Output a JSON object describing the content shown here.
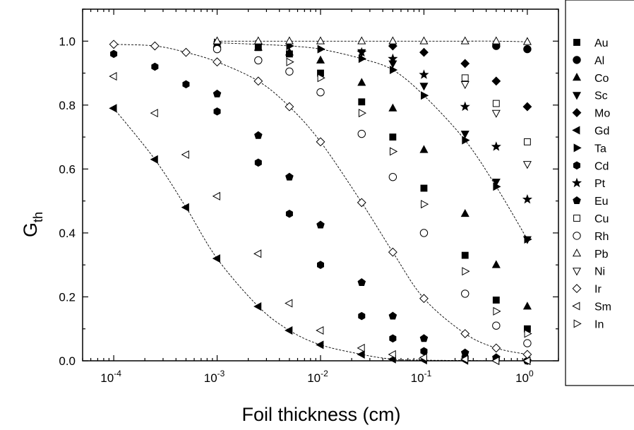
{
  "chart_data": {
    "type": "scatter",
    "title": "",
    "xlabel": "Foil thickness (cm)",
    "ylabel": "G",
    "ylabel_sub": "th",
    "x_scale": "log",
    "xlim": [
      5e-05,
      2
    ],
    "ylim": [
      0.0,
      1.1
    ],
    "x_ticks": [
      {
        "value": 0.0001,
        "base": "10",
        "exp": "-4"
      },
      {
        "value": 0.001,
        "base": "10",
        "exp": "-3"
      },
      {
        "value": 0.01,
        "base": "10",
        "exp": "-2"
      },
      {
        "value": 0.1,
        "base": "10",
        "exp": "-1"
      },
      {
        "value": 1,
        "base": "10",
        "exp": "0"
      }
    ],
    "y_ticks": [
      {
        "value": 0.0,
        "label": "0.0"
      },
      {
        "value": 0.2,
        "label": "0.2"
      },
      {
        "value": 0.4,
        "label": "0.4"
      },
      {
        "value": 0.6,
        "label": "0.6"
      },
      {
        "value": 0.8,
        "label": "0.8"
      },
      {
        "value": 1.0,
        "label": "1.0"
      }
    ],
    "grid": false,
    "legend_position": "right-outside",
    "series": [
      {
        "name": "Au",
        "marker": "square",
        "filled": true,
        "x": [
          0.001,
          0.0025,
          0.005,
          0.01,
          0.025,
          0.05,
          0.1,
          0.25,
          0.5,
          1
        ],
        "y": [
          0.99,
          0.98,
          0.96,
          0.9,
          0.81,
          0.7,
          0.54,
          0.33,
          0.19,
          0.1
        ]
      },
      {
        "name": "Al",
        "marker": "circle",
        "filled": true,
        "x": [
          0.5,
          1
        ],
        "y": [
          0.985,
          0.975
        ]
      },
      {
        "name": "Co",
        "marker": "triangle-up",
        "filled": true,
        "x": [
          0.001,
          0.0025,
          0.005,
          0.01,
          0.025,
          0.05,
          0.1,
          0.25,
          0.5,
          1
        ],
        "y": [
          0.99,
          0.98,
          0.965,
          0.94,
          0.87,
          0.79,
          0.66,
          0.46,
          0.3,
          0.17
        ]
      },
      {
        "name": "Sc",
        "marker": "triangle-down",
        "filled": true,
        "x": [
          0.025,
          0.05,
          0.1,
          0.25,
          0.5,
          1
        ],
        "y": [
          0.965,
          0.93,
          0.86,
          0.71,
          0.56,
          0.38
        ]
      },
      {
        "name": "Mo",
        "marker": "diamond",
        "filled": true,
        "x": [
          0.05,
          0.1,
          0.25,
          0.5,
          1
        ],
        "y": [
          0.985,
          0.965,
          0.93,
          0.875,
          0.795
        ]
      },
      {
        "name": "Gd",
        "marker": "triangle-left",
        "filled": true,
        "fit": true,
        "x": [
          0.0001,
          0.00025,
          0.0005,
          0.001,
          0.0025,
          0.005,
          0.01,
          0.025,
          0.05,
          0.1,
          0.25,
          0.5,
          1
        ],
        "y": [
          0.79,
          0.63,
          0.48,
          0.32,
          0.17,
          0.095,
          0.05,
          0.02,
          0.005,
          0.002,
          0.001,
          0.0,
          0.0
        ]
      },
      {
        "name": "Ta",
        "marker": "triangle-right",
        "filled": true,
        "fit": true,
        "x": [
          0.001,
          0.0025,
          0.005,
          0.01,
          0.025,
          0.05,
          0.1,
          0.25,
          0.5,
          1
        ],
        "y": [
          0.995,
          0.99,
          0.985,
          0.975,
          0.945,
          0.91,
          0.83,
          0.69,
          0.545,
          0.38
        ]
      },
      {
        "name": "Cd",
        "marker": "hexagon",
        "filled": true,
        "x": [
          0.0001,
          0.00025,
          0.0005,
          0.001,
          0.0025,
          0.005,
          0.01,
          0.025,
          0.05,
          0.1,
          0.25,
          0.5,
          1
        ],
        "y": [
          0.96,
          0.92,
          0.865,
          0.78,
          0.62,
          0.46,
          0.3,
          0.14,
          0.07,
          0.03,
          0.01,
          0.005,
          0.0
        ]
      },
      {
        "name": "Pt",
        "marker": "star",
        "filled": true,
        "x": [
          0.025,
          0.05,
          0.1,
          0.25,
          0.5,
          1
        ],
        "y": [
          0.965,
          0.945,
          0.895,
          0.795,
          0.67,
          0.505
        ]
      },
      {
        "name": "Eu",
        "marker": "pentagon",
        "filled": true,
        "x": [
          0.001,
          0.0025,
          0.005,
          0.01,
          0.025,
          0.05,
          0.1,
          0.25,
          0.5,
          1
        ],
        "y": [
          0.835,
          0.705,
          0.575,
          0.425,
          0.245,
          0.14,
          0.07,
          0.025,
          0.01,
          0.0
        ]
      },
      {
        "name": "Cu",
        "marker": "square",
        "filled": false,
        "x": [
          0.25,
          0.5,
          1
        ],
        "y": [
          0.885,
          0.805,
          0.685
        ]
      },
      {
        "name": "Rh",
        "marker": "circle",
        "filled": false,
        "x": [
          0.001,
          0.0025,
          0.005,
          0.01,
          0.025,
          0.05,
          0.1,
          0.25,
          0.5,
          1
        ],
        "y": [
          0.975,
          0.94,
          0.905,
          0.84,
          0.71,
          0.575,
          0.4,
          0.21,
          0.11,
          0.055
        ]
      },
      {
        "name": "Pb",
        "marker": "triangle-up",
        "filled": false,
        "fit": true,
        "x": [
          0.001,
          0.0025,
          0.005,
          0.01,
          0.025,
          0.05,
          0.1,
          0.25,
          0.5,
          1
        ],
        "y": [
          1.0,
          1.0,
          1.0,
          1.0,
          1.0,
          1.0,
          1.0,
          1.0,
          1.0,
          0.998
        ]
      },
      {
        "name": "Ni",
        "marker": "triangle-down",
        "filled": false,
        "x": [
          0.25,
          0.5,
          1
        ],
        "y": [
          0.865,
          0.775,
          0.615
        ]
      },
      {
        "name": "Ir",
        "marker": "diamond",
        "filled": false,
        "fit": true,
        "x": [
          0.0001,
          0.00025,
          0.0005,
          0.001,
          0.0025,
          0.005,
          0.01,
          0.025,
          0.05,
          0.1,
          0.25,
          0.5,
          1
        ],
        "y": [
          0.99,
          0.985,
          0.965,
          0.935,
          0.875,
          0.795,
          0.685,
          0.495,
          0.34,
          0.195,
          0.085,
          0.04,
          0.02
        ]
      },
      {
        "name": "Sm",
        "marker": "triangle-left",
        "filled": false,
        "x": [
          0.0001,
          0.00025,
          0.0005,
          0.001,
          0.0025,
          0.005,
          0.01,
          0.025,
          0.05,
          0.1,
          0.25,
          0.5,
          1
        ],
        "y": [
          0.89,
          0.775,
          0.645,
          0.515,
          0.335,
          0.18,
          0.095,
          0.04,
          0.02,
          0.01,
          0.005,
          0.0,
          0.0
        ]
      },
      {
        "name": "In",
        "marker": "triangle-right",
        "filled": false,
        "x": [
          0.005,
          0.01,
          0.025,
          0.05,
          0.1,
          0.25,
          0.5,
          1
        ],
        "y": [
          0.935,
          0.885,
          0.775,
          0.655,
          0.49,
          0.28,
          0.155,
          0.085
        ]
      }
    ]
  }
}
